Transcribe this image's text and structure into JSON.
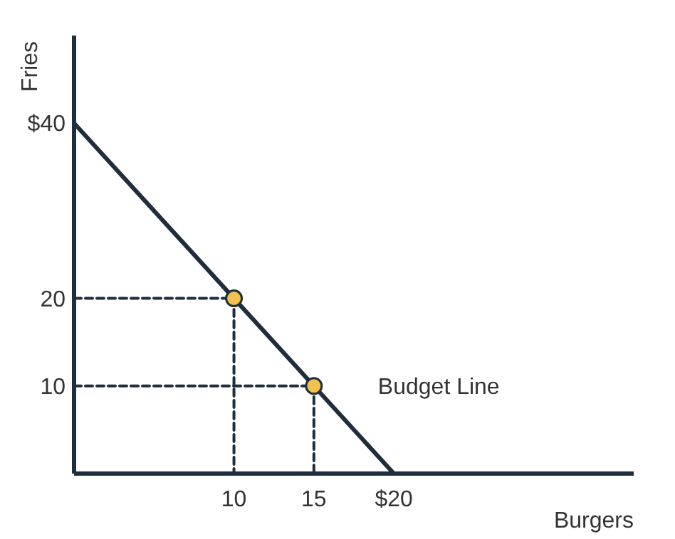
{
  "chart_data": {
    "type": "line",
    "xlabel": "Burgers",
    "ylabel": "Fries",
    "xlim": [
      0,
      35
    ],
    "ylim": [
      0,
      50
    ],
    "xticks": [
      10,
      15,
      {
        "value": 20,
        "label": "$20"
      }
    ],
    "yticks": [
      10,
      20,
      {
        "value": 40,
        "label": "$40"
      }
    ],
    "series": [
      {
        "color": "#1f2d3d",
        "x": [
          0,
          10,
          10
        ],
        "values": [
          20,
          20,
          0
        ],
        "line_style": "dashed",
        "marker": "none"
      },
      {
        "color": "#1f2d3d",
        "x": [
          0,
          15,
          15
        ],
        "values": [
          10,
          10,
          0
        ],
        "line_style": "dashed",
        "marker": "none"
      },
      {
        "name": "Budget Line",
        "color": "#1f2d3d",
        "x": [
          0,
          20
        ],
        "values": [
          40,
          0
        ],
        "line_style": "solid",
        "marker": "none"
      },
      {
        "type": "scatter",
        "color": "#f2c14e",
        "x": [
          10,
          15
        ],
        "values": [
          20,
          10
        ],
        "marker": "circle"
      }
    ]
  }
}
